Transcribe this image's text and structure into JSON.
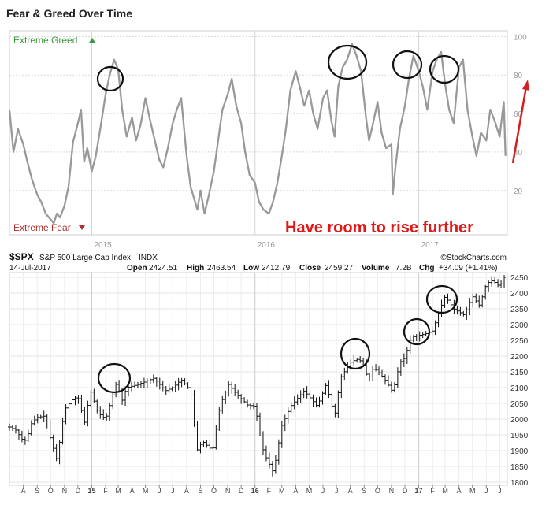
{
  "chart_data": [
    {
      "type": "line",
      "title": "Fear & Greed Over Time",
      "top_label": "Extreme Greed",
      "bottom_label": "Extreme Fear",
      "annotation": "Have room to rise further",
      "ylim": [
        0,
        100
      ],
      "yticks": [
        20,
        40,
        60,
        80,
        100
      ],
      "year_labels": [
        "2015",
        "2016",
        "2017"
      ],
      "colors": {
        "line": "#999999",
        "greed": "#3a9a3a",
        "fear": "#b03030",
        "annotation": "#e01818",
        "arrow": "#d02020"
      },
      "series": [
        {
          "x": [
            "2014-07-01",
            "2014-07-10",
            "2014-07-20",
            "2014-08-01",
            "2014-08-10",
            "2014-08-20",
            "2014-09-01",
            "2014-09-10",
            "2014-09-20",
            "2014-10-01",
            "2014-10-08",
            "2014-10-15",
            "2014-10-22",
            "2014-11-01",
            "2014-11-10",
            "2014-11-20",
            "2014-12-01",
            "2014-12-08",
            "2014-12-15",
            "2014-12-22",
            "2015-01-01",
            "2015-01-10",
            "2015-01-20",
            "2015-02-01",
            "2015-02-10",
            "2015-02-20",
            "2015-03-01",
            "2015-03-10",
            "2015-03-20",
            "2015-04-01",
            "2015-04-10",
            "2015-04-20",
            "2015-05-01",
            "2015-05-10",
            "2015-05-20",
            "2015-06-01",
            "2015-06-10",
            "2015-06-20",
            "2015-07-01",
            "2015-07-10",
            "2015-07-20",
            "2015-08-01",
            "2015-08-10",
            "2015-08-20",
            "2015-08-25",
            "2015-09-01",
            "2015-09-10",
            "2015-09-20",
            "2015-10-01",
            "2015-10-10",
            "2015-10-20",
            "2015-11-01",
            "2015-11-10",
            "2015-11-20",
            "2015-12-01",
            "2015-12-10",
            "2015-12-20",
            "2016-01-01",
            "2016-01-10",
            "2016-01-20",
            "2016-02-01",
            "2016-02-10",
            "2016-02-20",
            "2016-03-01",
            "2016-03-10",
            "2016-03-20",
            "2016-04-01",
            "2016-04-10",
            "2016-04-20",
            "2016-05-01",
            "2016-05-10",
            "2016-05-20",
            "2016-06-01",
            "2016-06-10",
            "2016-06-20",
            "2016-06-27",
            "2016-07-05",
            "2016-07-15",
            "2016-07-25",
            "2016-08-05",
            "2016-08-15",
            "2016-08-25",
            "2016-09-05",
            "2016-09-12",
            "2016-09-20",
            "2016-10-01",
            "2016-10-10",
            "2016-10-20",
            "2016-11-01",
            "2016-11-04",
            "2016-11-10",
            "2016-11-20",
            "2016-12-01",
            "2016-12-10",
            "2016-12-20",
            "2017-01-01",
            "2017-01-10",
            "2017-01-20",
            "2017-02-01",
            "2017-02-10",
            "2017-02-20",
            "2017-03-01",
            "2017-03-10",
            "2017-03-20",
            "2017-04-01",
            "2017-04-10",
            "2017-04-20",
            "2017-05-01",
            "2017-05-10",
            "2017-05-20",
            "2017-06-01",
            "2017-06-10",
            "2017-06-20",
            "2017-07-01",
            "2017-07-10",
            "2017-07-14"
          ],
          "y": [
            62,
            40,
            52,
            44,
            35,
            26,
            18,
            14,
            8,
            5,
            3,
            8,
            6,
            12,
            22,
            45,
            55,
            62,
            35,
            42,
            30,
            38,
            52,
            70,
            80,
            88,
            83,
            62,
            48,
            58,
            46,
            54,
            68,
            58,
            48,
            36,
            32,
            42,
            55,
            62,
            68,
            38,
            22,
            14,
            10,
            20,
            8,
            18,
            30,
            45,
            62,
            70,
            78,
            64,
            55,
            40,
            28,
            24,
            14,
            10,
            8,
            14,
            24,
            38,
            52,
            72,
            82,
            74,
            64,
            72,
            60,
            52,
            68,
            72,
            56,
            48,
            74,
            84,
            88,
            96,
            90,
            82,
            58,
            46,
            54,
            66,
            50,
            42,
            44,
            18,
            32,
            52,
            64,
            78,
            90,
            82,
            74,
            62,
            82,
            88,
            92,
            75,
            62,
            55,
            84,
            88,
            62,
            48,
            38,
            50,
            46,
            62,
            56,
            48,
            66,
            38
          ]
        }
      ]
    },
    {
      "type": "ohlc",
      "symbol": "$SPX",
      "name": "S&P 500 Large Cap Index",
      "exchange": "INDX",
      "attribution": "©StockCharts.com",
      "date": "14-Jul-2017",
      "open_label": "Open",
      "open": "2424.51",
      "high_label": "High",
      "high": "2463.54",
      "low_label": "Low",
      "low": "2412.79",
      "close_label": "Close",
      "close": "2459.27",
      "volume_label": "Volume",
      "volume": "7.2B",
      "chg_label": "Chg",
      "chg": "+34.09 (+1.41%)",
      "ylim": [
        1790,
        2465
      ],
      "yticks": [
        1800,
        1850,
        1900,
        1950,
        2000,
        2050,
        2100,
        2150,
        2200,
        2250,
        2300,
        2350,
        2400,
        2450
      ],
      "month_labels": [
        "A",
        "S",
        "O",
        "N",
        "D",
        "15",
        "F",
        "M",
        "A",
        "M",
        "J",
        "J",
        "A",
        "S",
        "O",
        "N",
        "D",
        "16",
        "F",
        "M",
        "A",
        "M",
        "J",
        "J",
        "A",
        "S",
        "O",
        "N",
        "D",
        "17",
        "F",
        "M",
        "A",
        "M",
        "J",
        "J"
      ],
      "colors": {
        "bar": "#111111",
        "grid": "#e4e4e4",
        "circle": "#111111"
      },
      "series": [
        {
          "x": [
            "2014-07-01",
            "2014-07-15",
            "2014-08-01",
            "2014-08-08",
            "2014-08-20",
            "2014-09-01",
            "2014-09-18",
            "2014-10-01",
            "2014-10-15",
            "2014-11-01",
            "2014-11-20",
            "2014-12-01",
            "2014-12-16",
            "2014-12-29",
            "2015-01-15",
            "2015-02-01",
            "2015-02-25",
            "2015-03-10",
            "2015-03-20",
            "2015-04-15",
            "2015-05-20",
            "2015-06-15",
            "2015-07-01",
            "2015-07-20",
            "2015-08-10",
            "2015-08-24",
            "2015-09-05",
            "2015-09-28",
            "2015-10-15",
            "2015-11-03",
            "2015-11-20",
            "2015-12-15",
            "2016-01-01",
            "2016-01-20",
            "2016-02-11",
            "2016-03-01",
            "2016-03-20",
            "2016-04-20",
            "2016-05-19",
            "2016-06-08",
            "2016-06-27",
            "2016-07-10",
            "2016-08-01",
            "2016-08-15",
            "2016-09-01",
            "2016-09-09",
            "2016-09-22",
            "2016-10-15",
            "2016-11-04",
            "2016-11-20",
            "2016-12-01",
            "2016-12-15",
            "2017-01-15",
            "2017-02-01",
            "2017-02-15",
            "2017-03-01",
            "2017-03-20",
            "2017-04-13",
            "2017-05-01",
            "2017-05-17",
            "2017-06-01",
            "2017-06-15",
            "2017-07-01",
            "2017-07-14"
          ],
          "y": [
            1975,
            1965,
            1930,
            1935,
            1990,
            2005,
            2010,
            1935,
            1870,
            2030,
            2065,
            2070,
            1990,
            2090,
            2020,
            2000,
            2115,
            2060,
            2100,
            2110,
            2130,
            2090,
            2100,
            2125,
            2090,
            1900,
            1930,
            1900,
            2045,
            2110,
            2080,
            2045,
            2040,
            1895,
            1830,
            1980,
            2040,
            2090,
            2040,
            2110,
            2010,
            2130,
            2180,
            2190,
            2180,
            2120,
            2165,
            2130,
            2085,
            2180,
            2195,
            2260,
            2270,
            2280,
            2340,
            2390,
            2350,
            2330,
            2390,
            2360,
            2430,
            2440,
            2420,
            2459
          ]
        }
      ]
    }
  ]
}
